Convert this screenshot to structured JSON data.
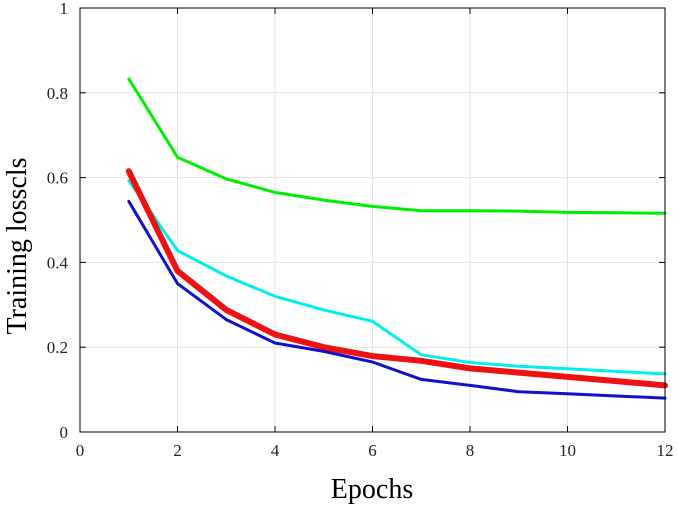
{
  "chart_data": {
    "type": "line",
    "title": "",
    "xlabel": "Epochs",
    "ylabel": "Training losscls",
    "xlim": [
      0,
      12
    ],
    "ylim": [
      0,
      1
    ],
    "xticks": [
      0,
      2,
      4,
      6,
      8,
      10,
      12
    ],
    "yticks": [
      0,
      0.2,
      0.4,
      0.6,
      0.8,
      1
    ],
    "ytick_labels": [
      "0",
      "0.2",
      "0.4",
      "0.6",
      "0.8",
      "1"
    ],
    "grid": true,
    "legend": "none",
    "x": [
      1,
      2,
      3,
      4,
      5,
      6,
      7,
      8,
      9,
      10,
      11,
      12
    ],
    "series": [
      {
        "color": "#00ee00",
        "width": "thin",
        "values": [
          0.833,
          0.648,
          0.597,
          0.565,
          0.547,
          0.532,
          0.522,
          0.522,
          0.521,
          0.518,
          0.517,
          0.516
        ]
      },
      {
        "color": "#00eeee",
        "width": "thin",
        "values": [
          0.593,
          0.428,
          0.368,
          0.32,
          0.288,
          0.261,
          0.182,
          0.164,
          0.155,
          0.149,
          0.143,
          0.137
        ]
      },
      {
        "color": "#ee1111",
        "width": "thick",
        "values": [
          0.615,
          0.38,
          0.288,
          0.23,
          0.2,
          0.179,
          0.168,
          0.15,
          0.14,
          0.13,
          0.12,
          0.11
        ]
      },
      {
        "color": "#1111cc",
        "width": "thin",
        "values": [
          0.544,
          0.35,
          0.265,
          0.21,
          0.19,
          0.165,
          0.124,
          0.11,
          0.095,
          0.09,
          0.085,
          0.08
        ]
      }
    ]
  }
}
